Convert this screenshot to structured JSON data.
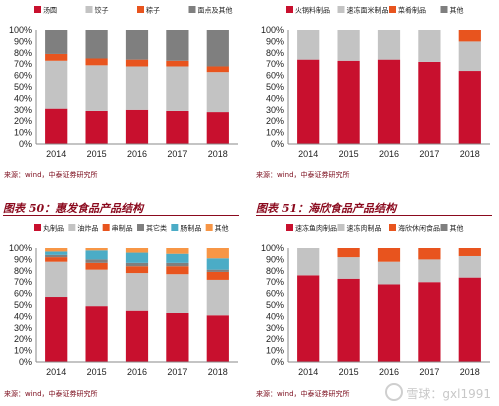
{
  "colors": {
    "red": "#C8102E",
    "gray": "#C3C3C3",
    "orange": "#E8541E",
    "dark": "#7F7F7F",
    "teal": "#4BACC6",
    "amber": "#F79646"
  },
  "panels": [
    {
      "title": "",
      "source": "来源：wind，中泰证券研究所",
      "chart_data": {
        "type": "bar",
        "stacked": true,
        "categories": [
          "2014",
          "2015",
          "2016",
          "2017",
          "2018"
        ],
        "ylim": [
          0,
          100
        ],
        "yticks": [
          "0%",
          "10%",
          "20%",
          "30%",
          "40%",
          "50%",
          "60%",
          "70%",
          "80%",
          "90%",
          "100%"
        ],
        "series": [
          {
            "name": "汤圆",
            "color": "#C8102E",
            "values": [
              31,
              29,
              30,
              29,
              28
            ]
          },
          {
            "name": "饺子",
            "color": "#C3C3C3",
            "values": [
              42,
              40,
              38,
              39,
              35
            ]
          },
          {
            "name": "粽子",
            "color": "#E8541E",
            "values": [
              6,
              6,
              6,
              5,
              5
            ]
          },
          {
            "name": "面点及其他",
            "color": "#7F7F7F",
            "values": [
              21,
              25,
              26,
              27,
              32
            ]
          }
        ]
      }
    },
    {
      "title": "",
      "source": "来源：wind，中泰证券研究所",
      "chart_data": {
        "type": "bar",
        "stacked": true,
        "categories": [
          "2014",
          "2015",
          "2016",
          "2017",
          "2018"
        ],
        "ylim": [
          0,
          100
        ],
        "yticks": [
          "0%",
          "10%",
          "20%",
          "30%",
          "40%",
          "50%",
          "60%",
          "70%",
          "80%",
          "90%",
          "100%"
        ],
        "series": [
          {
            "name": "火锅料制品",
            "color": "#C8102E",
            "values": [
              74,
              73,
              74,
              72,
              64
            ]
          },
          {
            "name": "速冻面米制品",
            "color": "#C3C3C3",
            "values": [
              26,
              27,
              26,
              28,
              26
            ]
          },
          {
            "name": "菜肴制品",
            "color": "#E8541E",
            "values": [
              0,
              0,
              0,
              0,
              10
            ]
          },
          {
            "name": "其他",
            "color": "#7F7F7F",
            "values": [
              0,
              0,
              0,
              0,
              0
            ]
          }
        ]
      }
    },
    {
      "title": "图表 50：惠发食品产品结构",
      "source": "来源：wind，中泰证券研究所",
      "chart_data": {
        "type": "bar",
        "stacked": true,
        "categories": [
          "2014",
          "2015",
          "2016",
          "2017",
          "2018"
        ],
        "ylim": [
          0,
          100
        ],
        "yticks": [
          "0%",
          "10%",
          "20%",
          "30%",
          "40%",
          "50%",
          "60%",
          "70%",
          "80%",
          "90%",
          "100%"
        ],
        "series": [
          {
            "name": "丸制品",
            "color": "#C8102E",
            "values": [
              57,
              49,
              45,
              43,
              41
            ]
          },
          {
            "name": "油炸品",
            "color": "#C3C3C3",
            "values": [
              31,
              32,
              33,
              34,
              31
            ]
          },
          {
            "name": "串制品",
            "color": "#E8541E",
            "values": [
              4,
              6,
              6,
              7,
              7
            ]
          },
          {
            "name": "其它类",
            "color": "#7F7F7F",
            "values": [
              2,
              3,
              3,
              3,
              2
            ]
          },
          {
            "name": "肠制品",
            "color": "#4BACC6",
            "values": [
              3,
              8,
              9,
              8,
              10
            ]
          },
          {
            "name": "其他",
            "color": "#F79646",
            "values": [
              3,
              2,
              4,
              5,
              9
            ]
          }
        ]
      }
    },
    {
      "title": "图表 51：海欣食品产品结构",
      "source": "来源：wind，中泰证券研究所",
      "chart_data": {
        "type": "bar",
        "stacked": true,
        "categories": [
          "2014",
          "2015",
          "2016",
          "2017",
          "2018"
        ],
        "ylim": [
          0,
          100
        ],
        "yticks": [
          "0%",
          "10%",
          "20%",
          "30%",
          "40%",
          "50%",
          "60%",
          "70%",
          "80%",
          "90%",
          "100%"
        ],
        "series": [
          {
            "name": "速冻鱼肉制品",
            "color": "#C8102E",
            "values": [
              76,
              73,
              68,
              70,
              74
            ]
          },
          {
            "name": "速冻肉制品",
            "color": "#C3C3C3",
            "values": [
              24,
              19,
              20,
              20,
              19
            ]
          },
          {
            "name": "海欣休闲食品",
            "color": "#E8541E",
            "values": [
              0,
              8,
              12,
              10,
              7
            ]
          },
          {
            "name": "其他",
            "color": "#7F7F7F",
            "values": [
              0,
              0,
              0,
              0,
              0
            ]
          }
        ]
      }
    }
  ],
  "watermark": "雪球：gxl1991"
}
